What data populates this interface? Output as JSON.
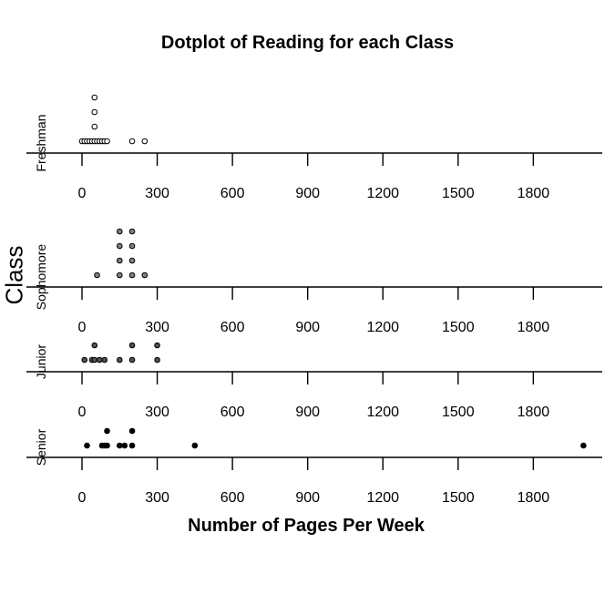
{
  "chart_data": {
    "type": "scatter",
    "title": "Dotplot of Reading for each Class",
    "xlabel": "Number of Pages Per Week",
    "ylabel": "Class",
    "xlim": [
      0,
      2000
    ],
    "xticks": [
      0,
      300,
      600,
      900,
      1200,
      1500,
      1800
    ],
    "grid": false,
    "panels": [
      {
        "name": "Freshman",
        "dot_color": "#ffffff",
        "values": [
          0,
          10,
          20,
          30,
          40,
          50,
          50,
          50,
          50,
          60,
          70,
          80,
          90,
          100,
          200,
          250
        ]
      },
      {
        "name": "Sophomore",
        "dot_color": "#808080",
        "values": [
          60,
          150,
          150,
          150,
          150,
          200,
          200,
          200,
          200,
          250
        ]
      },
      {
        "name": "Junior",
        "dot_color": "#505050",
        "values": [
          10,
          40,
          50,
          50,
          70,
          90,
          150,
          200,
          200,
          300,
          300
        ]
      },
      {
        "name": "Senior",
        "dot_color": "#000000",
        "values": [
          20,
          80,
          90,
          100,
          100,
          150,
          170,
          200,
          200,
          450,
          2000
        ]
      }
    ]
  }
}
